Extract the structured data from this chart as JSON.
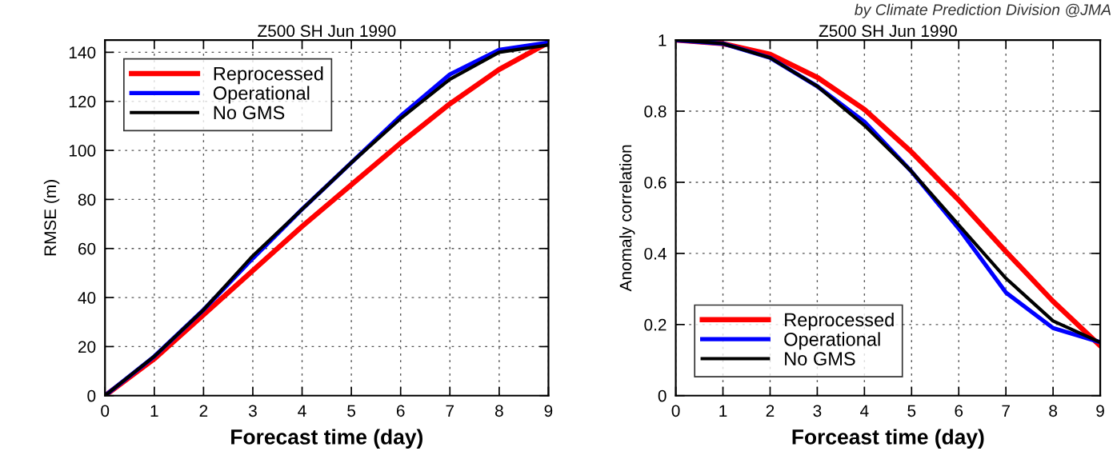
{
  "chart_data": [
    {
      "type": "line",
      "title": "Z500 SH Jun 1990",
      "xlabel": "Forecast time (day)",
      "ylabel": "RMSE (m)",
      "x": [
        0,
        1,
        2,
        3,
        4,
        5,
        6,
        7,
        8,
        9
      ],
      "xlim": [
        0,
        9
      ],
      "xticks": [
        0,
        1,
        2,
        3,
        4,
        5,
        6,
        7,
        8,
        9
      ],
      "ylim": [
        0,
        145
      ],
      "yticks": [
        0,
        20,
        40,
        60,
        80,
        100,
        120,
        140
      ],
      "grid": true,
      "legend": "top left",
      "line_style": "solid",
      "series": [
        {
          "name": "Reprocessed",
          "color": "#ff0000",
          "values": [
            0,
            15,
            33,
            51,
            69,
            86,
            103,
            119,
            133,
            144
          ]
        },
        {
          "name": "Operational",
          "color": "#0000ff",
          "values": [
            0,
            16,
            35,
            56,
            76,
            95,
            114,
            131,
            141,
            144
          ]
        },
        {
          "name": "No GMS",
          "color": "#000000",
          "values": [
            0,
            16,
            35,
            57,
            76,
            95,
            113,
            129,
            140,
            143
          ]
        }
      ]
    },
    {
      "type": "line",
      "title": "Z500 SH Jun 1990",
      "xlabel": "Forceast time (day)",
      "ylabel": "Anomaly correlation",
      "annotations": [
        "by Climate Prediction Division @JMA"
      ],
      "x": [
        0,
        1,
        2,
        3,
        4,
        5,
        6,
        7,
        8,
        9
      ],
      "xlim": [
        0,
        9
      ],
      "xticks": [
        0,
        1,
        2,
        3,
        4,
        5,
        6,
        7,
        8,
        9
      ],
      "ylim": [
        0,
        1
      ],
      "yticks": [
        0,
        0.2,
        0.4,
        0.6,
        0.8,
        1
      ],
      "grid": true,
      "legend": "bottom left",
      "line_style": "solid",
      "series": [
        {
          "name": "Reprocessed",
          "color": "#ff0000",
          "values": [
            1,
            0.99,
            0.96,
            0.895,
            0.805,
            0.685,
            0.55,
            0.405,
            0.265,
            0.14
          ]
        },
        {
          "name": "Operational",
          "color": "#0000ff",
          "values": [
            1,
            0.99,
            0.95,
            0.87,
            0.77,
            0.63,
            0.47,
            0.29,
            0.19,
            0.15
          ]
        },
        {
          "name": "No GMS",
          "color": "#000000",
          "values": [
            1,
            0.99,
            0.95,
            0.87,
            0.76,
            0.63,
            0.48,
            0.33,
            0.21,
            0.15
          ]
        }
      ]
    }
  ]
}
